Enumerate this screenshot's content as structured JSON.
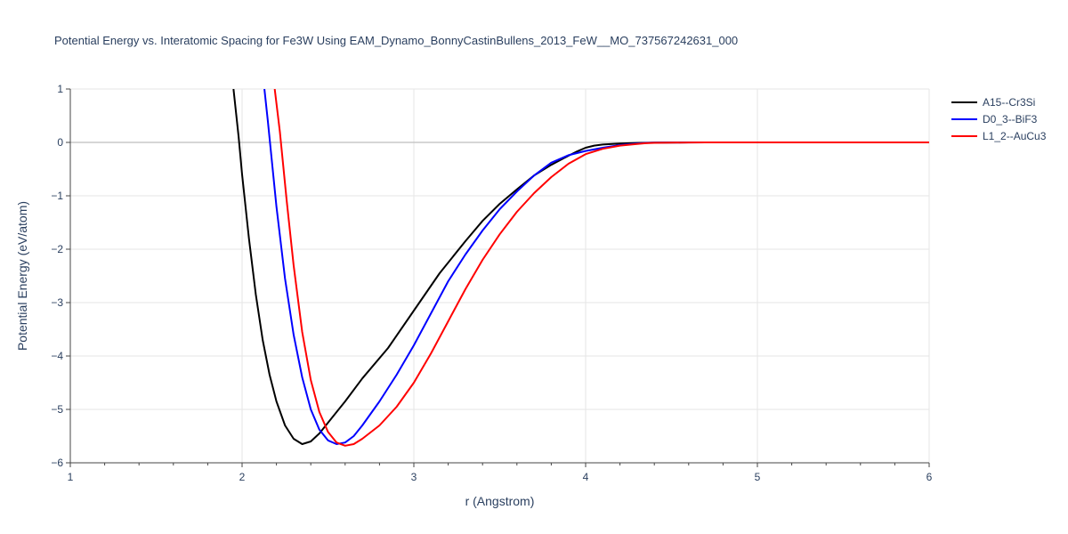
{
  "chart_data": {
    "type": "line",
    "title": "Potential Energy vs. Interatomic Spacing for Fe3W Using EAM_Dynamo_BonnyCastinBullens_2013_FeW__MO_737567242631_000",
    "xlabel": "r (Angstrom)",
    "ylabel": "Potential Energy (eV/atom)",
    "xlim": [
      1,
      6
    ],
    "ylim": [
      -6,
      1
    ],
    "xticks": [
      "1",
      "2",
      "3",
      "4",
      "5",
      "6"
    ],
    "yticks": [
      "1",
      "0",
      "−1",
      "−2",
      "−3",
      "−4",
      "−5",
      "−6"
    ],
    "grid": true,
    "legend_position": "top-right",
    "series": [
      {
        "name": "A15--Cr3Si",
        "color": "#000000",
        "x": [
          1.95,
          1.98,
          2.0,
          2.04,
          2.08,
          2.12,
          2.16,
          2.2,
          2.25,
          2.3,
          2.35,
          2.4,
          2.45,
          2.5,
          2.6,
          2.7,
          2.85,
          3.0,
          3.15,
          3.3,
          3.4,
          3.5,
          3.6,
          3.7,
          3.8,
          3.9,
          3.95,
          4.0,
          4.05,
          4.1,
          4.2,
          4.3,
          4.4,
          4.6,
          5.0,
          6.0
        ],
        "y": [
          1.0,
          0.1,
          -0.6,
          -1.8,
          -2.85,
          -3.7,
          -4.35,
          -4.85,
          -5.3,
          -5.55,
          -5.65,
          -5.6,
          -5.45,
          -5.25,
          -4.85,
          -4.42,
          -3.85,
          -3.15,
          -2.45,
          -1.85,
          -1.47,
          -1.15,
          -0.88,
          -0.62,
          -0.42,
          -0.25,
          -0.17,
          -0.1,
          -0.06,
          -0.04,
          -0.02,
          -0.01,
          -0.005,
          -0.001,
          0.0,
          0.0
        ]
      },
      {
        "name": "D0_3--BiF3",
        "color": "#0000ff",
        "x": [
          2.13,
          2.15,
          2.2,
          2.25,
          2.3,
          2.35,
          2.4,
          2.45,
          2.5,
          2.55,
          2.6,
          2.65,
          2.7,
          2.8,
          2.9,
          3.0,
          3.1,
          3.2,
          3.3,
          3.4,
          3.5,
          3.6,
          3.7,
          3.8,
          3.9,
          4.0,
          4.1,
          4.2,
          4.3,
          4.35,
          4.4,
          4.5,
          4.7,
          5.0,
          6.0
        ],
        "y": [
          1.0,
          0.4,
          -1.2,
          -2.55,
          -3.6,
          -4.4,
          -5.0,
          -5.38,
          -5.58,
          -5.65,
          -5.62,
          -5.5,
          -5.3,
          -4.85,
          -4.35,
          -3.8,
          -3.2,
          -2.6,
          -2.1,
          -1.65,
          -1.25,
          -0.92,
          -0.62,
          -0.38,
          -0.24,
          -0.16,
          -0.1,
          -0.05,
          -0.02,
          -0.01,
          -0.005,
          -0.002,
          -0.001,
          0.0,
          0.0
        ]
      },
      {
        "name": "L1_2--AuCu3",
        "color": "#ff0000",
        "x": [
          2.19,
          2.22,
          2.26,
          2.3,
          2.35,
          2.4,
          2.45,
          2.5,
          2.55,
          2.6,
          2.65,
          2.7,
          2.8,
          2.9,
          3.0,
          3.1,
          3.2,
          3.3,
          3.4,
          3.5,
          3.6,
          3.7,
          3.8,
          3.9,
          4.0,
          4.1,
          4.2,
          4.3,
          4.35,
          4.4,
          4.5,
          4.6,
          4.7,
          5.0,
          6.0
        ],
        "y": [
          1.0,
          0.2,
          -1.1,
          -2.3,
          -3.55,
          -4.45,
          -5.05,
          -5.42,
          -5.62,
          -5.68,
          -5.65,
          -5.55,
          -5.3,
          -4.95,
          -4.5,
          -3.95,
          -3.35,
          -2.75,
          -2.2,
          -1.72,
          -1.3,
          -0.95,
          -0.65,
          -0.4,
          -0.22,
          -0.12,
          -0.06,
          -0.03,
          -0.015,
          -0.008,
          -0.004,
          -0.002,
          -0.001,
          0.0,
          0.0
        ]
      }
    ]
  }
}
